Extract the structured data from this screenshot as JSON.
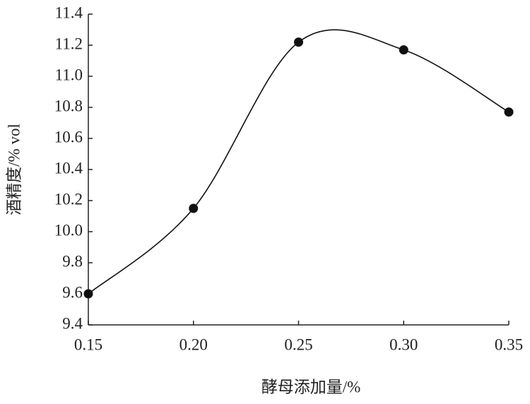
{
  "chart_data": {
    "type": "line",
    "x_label": "酵母添加量/%",
    "y_label": "酒精度/% vol",
    "x": [
      0.15,
      0.2,
      0.25,
      0.3,
      0.35
    ],
    "series": [
      {
        "color": "#111111",
        "values": [
          9.6,
          10.15,
          11.22,
          11.17,
          10.77
        ]
      }
    ],
    "xlim": [
      0.15,
      0.35
    ],
    "xticks": [
      0.15,
      {
        "value": 0.2,
        "label": "0.20"
      },
      0.25,
      {
        "value": 0.3,
        "label": "0.30"
      },
      0.35
    ],
    "ylim": [
      9.4,
      11.4
    ],
    "yticks": [
      9.4,
      9.6,
      9.8,
      {
        "value": 10,
        "label": "10.0"
      },
      10.2,
      10.4,
      10.6,
      10.8,
      {
        "value": 11,
        "label": "11.0"
      },
      11.2,
      11.4
    ],
    "smooth": true,
    "grid": false
  }
}
